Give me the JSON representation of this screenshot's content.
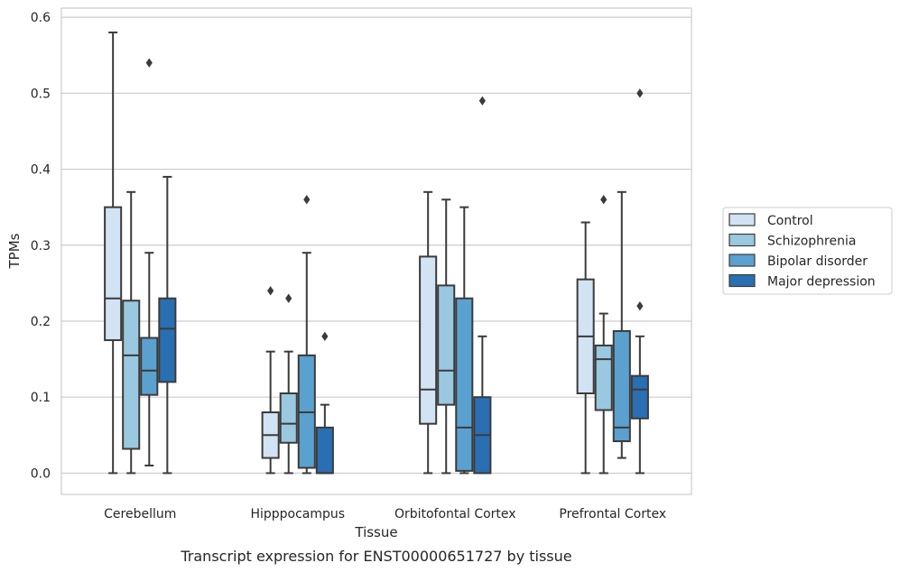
{
  "caption": "Transcript expression for ENST00000651727 by tissue",
  "chart_data": {
    "type": "box",
    "xlabel": "Tissue",
    "ylabel": "TPMs",
    "ylim": [
      -0.028,
      0.612
    ],
    "yticks": [
      "0.0",
      "0.1",
      "0.2",
      "0.3",
      "0.4",
      "0.5",
      "0.6"
    ],
    "grid": true,
    "legend_position": "right",
    "categories": [
      "Cerebellum",
      "Hipppocampus",
      "Orbitofontal Cortex",
      "Prefrontal Cortex"
    ],
    "series": [
      {
        "name": "Control",
        "color": "#d2e3f3",
        "boxes": [
          {
            "whislo": 0.0,
            "q1": 0.175,
            "med": 0.23,
            "q3": 0.35,
            "whishi": 0.58,
            "fliers": []
          },
          {
            "whislo": 0.0,
            "q1": 0.02,
            "med": 0.05,
            "q3": 0.08,
            "whishi": 0.16,
            "fliers": [
              0.24
            ]
          },
          {
            "whislo": 0.0,
            "q1": 0.065,
            "med": 0.11,
            "q3": 0.285,
            "whishi": 0.37,
            "fliers": []
          },
          {
            "whislo": 0.0,
            "q1": 0.105,
            "med": 0.18,
            "q3": 0.255,
            "whishi": 0.33,
            "fliers": []
          }
        ]
      },
      {
        "name": "Schizophrenia",
        "color": "#9ac8e0",
        "boxes": [
          {
            "whislo": 0.0,
            "q1": 0.032,
            "med": 0.155,
            "q3": 0.227,
            "whishi": 0.37,
            "fliers": []
          },
          {
            "whislo": 0.0,
            "q1": 0.04,
            "med": 0.065,
            "q3": 0.105,
            "whishi": 0.16,
            "fliers": [
              0.23
            ]
          },
          {
            "whislo": 0.0,
            "q1": 0.09,
            "med": 0.135,
            "q3": 0.247,
            "whishi": 0.36,
            "fliers": []
          },
          {
            "whislo": 0.0,
            "q1": 0.083,
            "med": 0.15,
            "q3": 0.168,
            "whishi": 0.21,
            "fliers": [
              0.36
            ]
          }
        ]
      },
      {
        "name": "Bipolar disorder",
        "color": "#5aa1cf",
        "boxes": [
          {
            "whislo": 0.01,
            "q1": 0.103,
            "med": 0.135,
            "q3": 0.178,
            "whishi": 0.29,
            "fliers": [
              0.54
            ]
          },
          {
            "whislo": 0.0,
            "q1": 0.007,
            "med": 0.08,
            "q3": 0.155,
            "whishi": 0.29,
            "fliers": [
              0.36
            ]
          },
          {
            "whislo": 0.0,
            "q1": 0.003,
            "med": 0.06,
            "q3": 0.23,
            "whishi": 0.35,
            "fliers": []
          },
          {
            "whislo": 0.02,
            "q1": 0.042,
            "med": 0.06,
            "q3": 0.187,
            "whishi": 0.37,
            "fliers": []
          }
        ]
      },
      {
        "name": "Major depression",
        "color": "#2a6fb2",
        "boxes": [
          {
            "whislo": 0.0,
            "q1": 0.12,
            "med": 0.19,
            "q3": 0.23,
            "whishi": 0.39,
            "fliers": []
          },
          {
            "whislo": 0.0,
            "q1": 0.0,
            "med": 0.0,
            "q3": 0.06,
            "whishi": 0.09,
            "fliers": [
              0.18
            ]
          },
          {
            "whislo": 0.0,
            "q1": 0.0,
            "med": 0.05,
            "q3": 0.1,
            "whishi": 0.18,
            "fliers": [
              0.49
            ]
          },
          {
            "whislo": 0.0,
            "q1": 0.072,
            "med": 0.11,
            "q3": 0.128,
            "whishi": 0.18,
            "fliers": [
              0.5,
              0.22
            ]
          }
        ]
      }
    ]
  }
}
